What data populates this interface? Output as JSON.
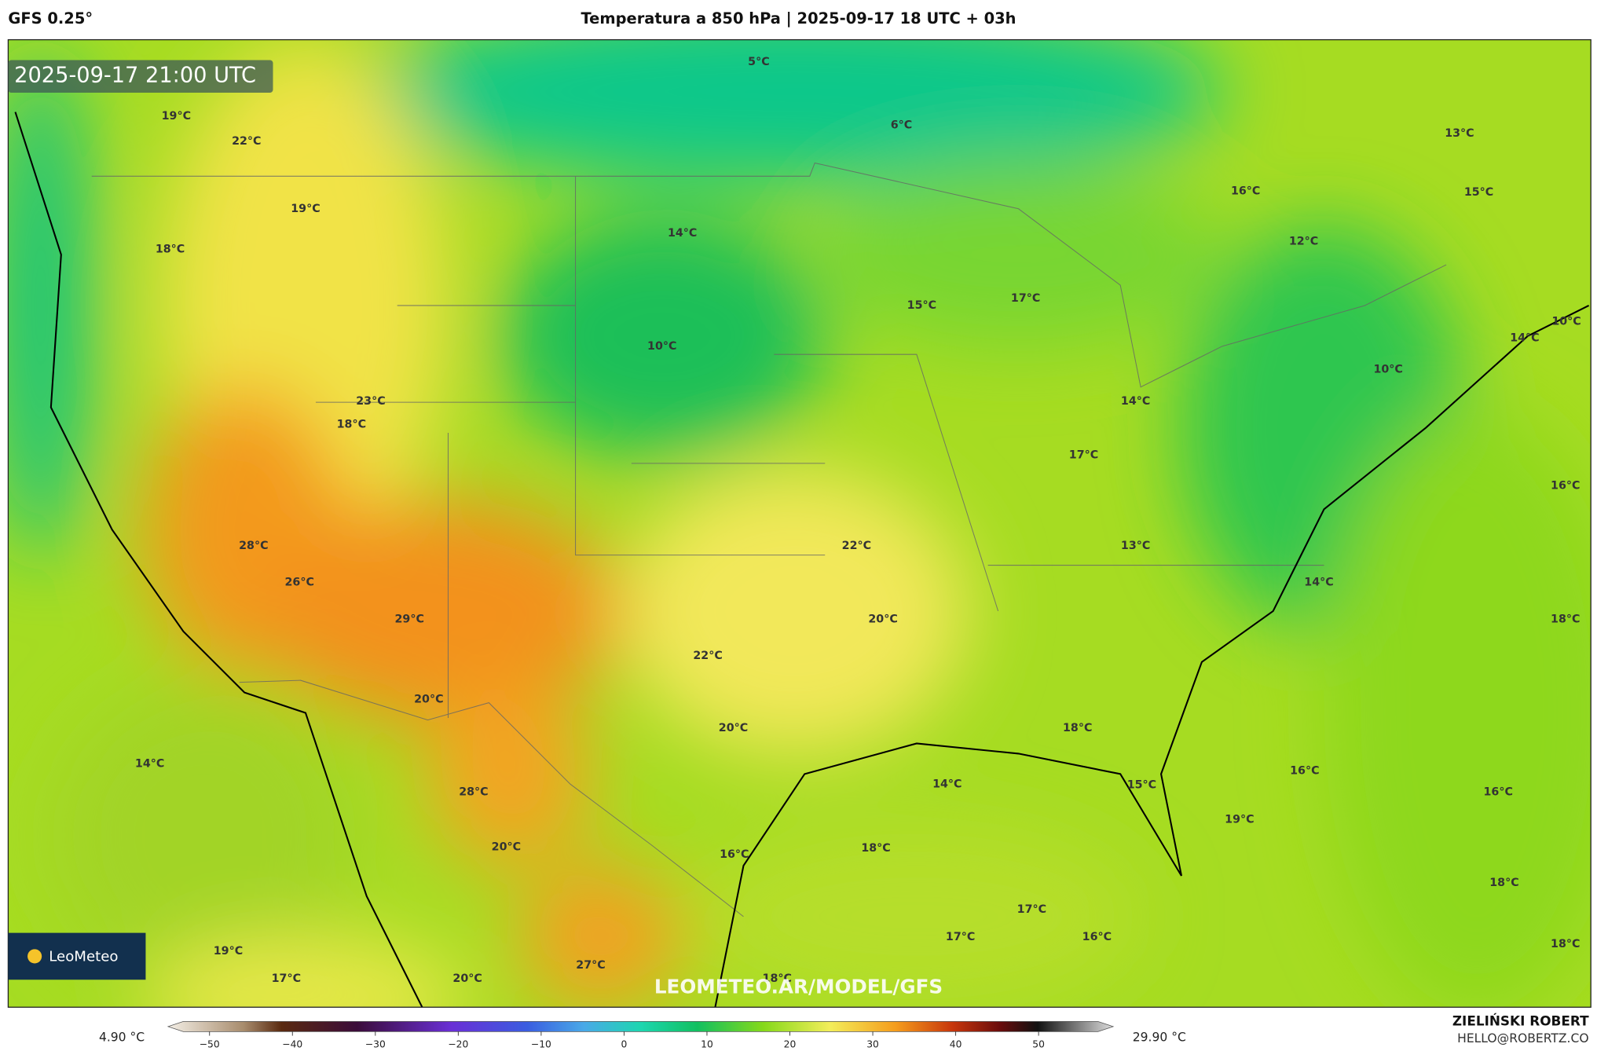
{
  "header": {
    "left": "GFS 0.25°",
    "title": "Temperatura a 850 hPa | 2025-09-17 18 UTC + 03h"
  },
  "timestamp": "2025-09-17 21:00 UTC",
  "logo": "LeoMeteo",
  "watermark": "LEOMETEO.AR/MODEL/GFS",
  "map": {
    "labels": [
      "5°C",
      "6°C",
      "13°C",
      "19°C",
      "22°C",
      "19°C",
      "18°C",
      "14°C",
      "16°C",
      "15°C",
      "12°C",
      "15°C",
      "17°C",
      "14°C",
      "10°C",
      "10°C",
      "23°C",
      "18°C",
      "10°C",
      "14°C",
      "17°C",
      "16°C",
      "22°C",
      "28°C",
      "13°C",
      "26°C",
      "14°C",
      "29°C",
      "20°C",
      "18°C",
      "22°C",
      "20°C",
      "20°C",
      "18°C",
      "14°C",
      "16°C",
      "14°C",
      "15°C",
      "16°C",
      "28°C",
      "19°C",
      "20°C",
      "18°C",
      "16°C",
      "18°C",
      "17°C",
      "17°C",
      "16°C",
      "18°C",
      "19°C",
      "17°C",
      "20°C",
      "27°C",
      "18°C"
    ]
  },
  "colorbar": {
    "min_label": "4.90 °C",
    "max_label": "29.90 °C",
    "lim": [
      -55,
      59
    ],
    "ticks": [
      {
        "value": -50,
        "label": "−50"
      },
      {
        "value": -40,
        "label": "−40"
      },
      {
        "value": -30,
        "label": "−30"
      },
      {
        "value": -20,
        "label": "−20"
      },
      {
        "value": -10,
        "label": "−10"
      },
      0,
      10,
      20,
      30,
      40,
      50
    ]
  },
  "author": {
    "name": "ZIELIŃSKI ROBERT",
    "email": "HELLO@ROBERTZ.CO"
  }
}
